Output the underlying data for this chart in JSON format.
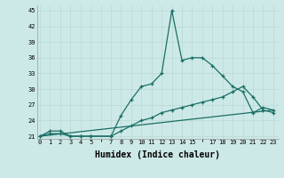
{
  "xlabel": "Humidex (Indice chaleur)",
  "bg_color": "#cde9e7",
  "line_color": "#1a6e64",
  "grid_color": "#b8d8d4",
  "series": [
    {
      "x": [
        0,
        1,
        2,
        3,
        4,
        5,
        7,
        8,
        9,
        10,
        11,
        12,
        13,
        14,
        15,
        16,
        17,
        18,
        19,
        20,
        21,
        22,
        23
      ],
      "y": [
        21,
        22,
        22,
        21,
        21,
        21,
        21,
        25,
        28,
        30.5,
        31,
        33,
        45,
        35.5,
        36,
        36,
        34.5,
        32.5,
        30.5,
        29.5,
        25.5,
        26.5,
        26
      ],
      "has_markers": true
    },
    {
      "x": [
        0,
        1,
        2,
        3,
        4,
        5,
        7,
        8,
        9,
        10,
        11,
        12,
        13,
        14,
        15,
        16,
        17,
        18,
        19,
        20,
        21,
        22,
        23
      ],
      "y": [
        21,
        21.5,
        21.5,
        21,
        21,
        21,
        21,
        22,
        23,
        24,
        24.5,
        25.5,
        26,
        26.5,
        27,
        27.5,
        28,
        28.5,
        29.5,
        30.5,
        28.5,
        26,
        25.5
      ],
      "has_markers": true
    },
    {
      "x": [
        0,
        23
      ],
      "y": [
        21,
        26
      ],
      "has_markers": false
    }
  ],
  "ylim": [
    20.5,
    46
  ],
  "yticks": [
    21,
    24,
    27,
    30,
    33,
    36,
    39,
    42,
    45
  ],
  "xlim": [
    -0.3,
    23.5
  ],
  "xtick_positions": [
    0,
    1,
    2,
    3,
    4,
    5,
    7,
    8,
    9,
    10,
    11,
    12,
    13,
    14,
    15,
    17,
    18,
    19,
    20,
    21,
    22,
    23
  ],
  "xtick_labels": [
    "0",
    "1",
    "2",
    "3",
    "4",
    "5",
    "7",
    "8",
    "9",
    "10",
    "11",
    "12",
    "13",
    "14",
    "15",
    "17",
    "18",
    "19",
    "20",
    "21",
    "22",
    "23"
  ],
  "xlabel_fontsize": 7,
  "tick_fontsize": 5,
  "linewidth": 0.9,
  "markersize": 3.5,
  "markeredgewidth": 0.9
}
